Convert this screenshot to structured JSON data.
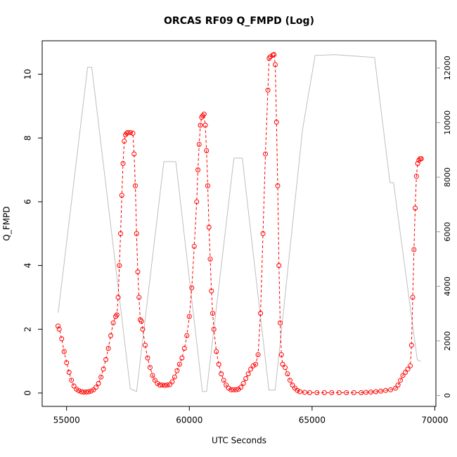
{
  "chart_data": {
    "type": "line",
    "title": "ORCAS RF09 Q_FMPD (Log)",
    "xlabel": "UTC Seconds",
    "ylabel": "Q_FMPD",
    "xlim": [
      54006,
      70044
    ],
    "ylim": [
      -0.42,
      11.05
    ],
    "y2lim": [
      -400,
      13000
    ],
    "xticks": [
      55000,
      60000,
      65000,
      70000
    ],
    "yticks": [
      0,
      2,
      4,
      6,
      8,
      10
    ],
    "y2ticks": [
      0,
      2000,
      4000,
      6000,
      8000,
      10000,
      12000
    ],
    "series": [
      {
        "color": "#bebebe",
        "axis": "y2",
        "x": [
          54658,
          55855,
          56026,
          57595,
          57851,
          58963,
          59448,
          60532,
          60703,
          61815,
          62157,
          63241,
          63497,
          64609,
          65123,
          65921,
          67546,
          68174,
          68317,
          69286,
          69429
        ],
        "values": [
          3031,
          12026,
          12026,
          247,
          144,
          8572,
          8572,
          144,
          144,
          8701,
          8701,
          196,
          196,
          9732,
          12464,
          12490,
          12387,
          7799,
          7799,
          1304,
          1253
        ]
      },
      {
        "color": "#ff0000",
        "x": [
          54650,
          54700,
          54800,
          54900,
          55000,
          55100,
          55200,
          55300,
          55400,
          55500,
          55600,
          55700,
          55800,
          55900,
          56000,
          56100,
          56200,
          56300,
          56400,
          56500,
          56600,
          56700,
          56800,
          56900,
          57000,
          57050,
          57100,
          57150,
          57200,
          57250,
          57300,
          57350,
          57400,
          57450,
          57500,
          57600,
          57700,
          57750,
          57800,
          57850,
          57900,
          57950,
          58000,
          58050,
          58100,
          58200,
          58300,
          58400,
          58500,
          58600,
          58700,
          58800,
          58900,
          59000,
          59100,
          59200,
          59300,
          59400,
          59500,
          59600,
          59700,
          59800,
          59900,
          60000,
          60100,
          60200,
          60300,
          60350,
          60400,
          60450,
          60500,
          60550,
          60600,
          60650,
          60700,
          60750,
          60800,
          60850,
          60900,
          60950,
          61000,
          61100,
          61200,
          61300,
          61400,
          61500,
          61600,
          61700,
          61800,
          61900,
          62000,
          62100,
          62200,
          62300,
          62400,
          62500,
          62600,
          62700,
          62800,
          62900,
          63000,
          63100,
          63200,
          63250,
          63300,
          63400,
          63450,
          63500,
          63550,
          63600,
          63650,
          63700,
          63750,
          63800,
          63900,
          64000,
          64100,
          64200,
          64300,
          64400,
          64500,
          64700,
          64900,
          65200,
          65500,
          65800,
          66100,
          66400,
          66700,
          67000,
          67200,
          67400,
          67600,
          67800,
          68000,
          68200,
          68400,
          68500,
          68600,
          68700,
          68800,
          68900,
          69000,
          69050,
          69100,
          69150,
          69200,
          69250,
          69300,
          69350,
          69400,
          69450
        ],
        "values": [
          2.1,
          2.0,
          1.7,
          1.3,
          0.95,
          0.65,
          0.4,
          0.22,
          0.12,
          0.07,
          0.04,
          0.03,
          0.03,
          0.04,
          0.06,
          0.1,
          0.18,
          0.3,
          0.5,
          0.75,
          1.05,
          1.4,
          1.8,
          2.2,
          2.4,
          2.45,
          3.0,
          4.0,
          5.0,
          6.2,
          7.2,
          7.9,
          8.1,
          8.15,
          8.17,
          8.17,
          8.15,
          7.5,
          6.5,
          5.0,
          3.8,
          3.0,
          2.3,
          2.25,
          2.0,
          1.5,
          1.1,
          0.8,
          0.55,
          0.4,
          0.3,
          0.25,
          0.25,
          0.24,
          0.25,
          0.26,
          0.35,
          0.5,
          0.7,
          0.9,
          1.1,
          1.4,
          1.8,
          2.4,
          3.3,
          4.6,
          6.0,
          7.0,
          7.8,
          8.4,
          8.65,
          8.7,
          8.75,
          8.4,
          7.6,
          6.5,
          5.2,
          4.2,
          3.2,
          2.5,
          2.0,
          1.3,
          0.9,
          0.6,
          0.4,
          0.25,
          0.15,
          0.1,
          0.1,
          0.1,
          0.12,
          0.18,
          0.3,
          0.45,
          0.6,
          0.75,
          0.85,
          0.9,
          1.2,
          2.5,
          5.0,
          7.5,
          9.5,
          10.5,
          10.55,
          10.6,
          10.62,
          10.3,
          8.5,
          6.5,
          4.0,
          2.2,
          1.2,
          0.9,
          0.8,
          0.6,
          0.4,
          0.25,
          0.15,
          0.08,
          0.04,
          0.02,
          0.01,
          0.01,
          0.01,
          0.01,
          0.01,
          0.01,
          0.01,
          0.01,
          0.02,
          0.03,
          0.04,
          0.06,
          0.08,
          0.1,
          0.15,
          0.25,
          0.4,
          0.55,
          0.65,
          0.75,
          0.85,
          1.5,
          3.0,
          4.5,
          5.8,
          6.8,
          7.2,
          7.3,
          7.35,
          7.35
        ]
      }
    ]
  }
}
